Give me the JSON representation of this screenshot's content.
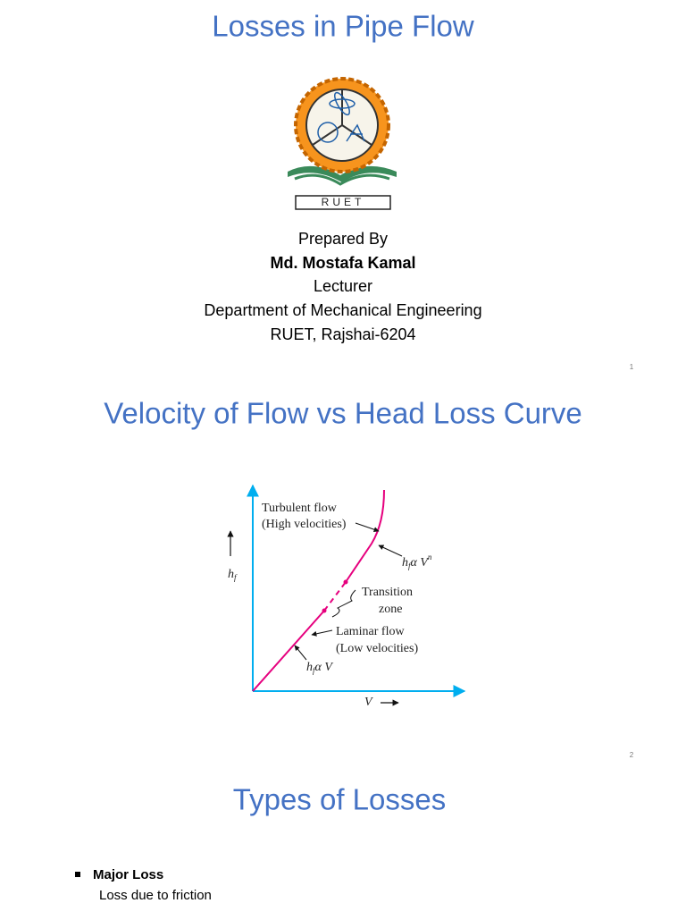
{
  "slides": [
    {
      "title": "Losses in Pipe Flow",
      "logo_text": "RUET",
      "prepared_by": {
        "label": "Prepared By",
        "name": "Md. Mostafa Kamal",
        "position": "Lecturer",
        "department": "Department of Mechanical Engineering",
        "institution": "RUET, Rajshai-6204"
      },
      "page_number": "1"
    },
    {
      "title": "Velocity of Flow vs Head Loss Curve",
      "figure": {
        "y_axis_label": {
          "base": "h",
          "sub": "f"
        },
        "x_axis_label": "V",
        "turbulent": {
          "name": "Turbulent flow",
          "note": "(High velocities)"
        },
        "turbulent_relation": {
          "base": "h",
          "sub": "f",
          "rest": "α V",
          "sup": "n"
        },
        "transition": {
          "line1": "Transition",
          "line2": "zone"
        },
        "laminar": {
          "name": "Laminar flow",
          "note": "(Low velocities)"
        },
        "laminar_relation": {
          "base": "h",
          "sub": "f",
          "rest": "α V"
        }
      },
      "page_number": "2"
    },
    {
      "title": "Types of Losses",
      "bullets": [
        {
          "heading": "Major Loss",
          "text": "Loss due to friction"
        }
      ]
    }
  ]
}
